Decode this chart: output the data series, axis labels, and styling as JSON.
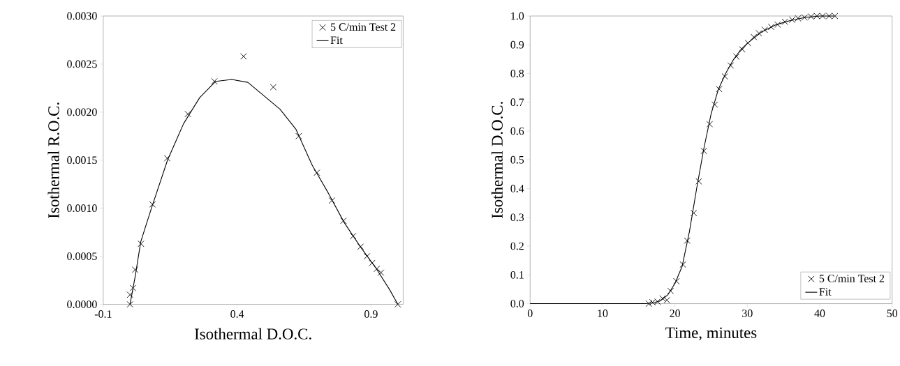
{
  "chart_data": [
    {
      "type": "scatter",
      "xlabel": "Isothermal D.O.C.",
      "ylabel": "Isothermal R.O.C.",
      "xlim": [
        -0.1,
        1.02
      ],
      "ylim": [
        0,
        0.003
      ],
      "xticks": [
        -0.1,
        0.4,
        0.9
      ],
      "yticks": [
        {
          "value": 0,
          "label": "0.0000"
        },
        {
          "value": 0.0005,
          "label": "0.0005"
        },
        {
          "value": 0.001,
          "label": "0.0010"
        },
        {
          "value": 0.0015,
          "label": "0.0015"
        },
        {
          "value": 0.002,
          "label": "0.0020"
        },
        {
          "value": 0.0025,
          "label": "0.0025"
        },
        {
          "value": 0.003,
          "label": "0.0030"
        }
      ],
      "legend": "top right",
      "series": [
        {
          "name": "5 C/min Test 2",
          "marker": "cross",
          "color": "#000000",
          "x": [
            0.0,
            0.0,
            0.011,
            0.019,
            0.041,
            0.084,
            0.139,
            0.216,
            0.315,
            0.424,
            0.535,
            0.63,
            0.698,
            0.754,
            0.797,
            0.833,
            0.861,
            0.885,
            0.904,
            0.922,
            0.937,
            1.0
          ],
          "values": [
            0.0,
            0.0001,
            0.00017,
            0.00036,
            0.00063,
            0.00104,
            0.00152,
            0.00198,
            0.00232,
            0.00258,
            0.00226,
            0.00175,
            0.00137,
            0.00108,
            0.00087,
            0.00071,
            0.0006,
            0.0005,
            0.00043,
            0.00037,
            0.00033,
            0.0
          ]
        },
        {
          "name": "Fit",
          "type": "line",
          "marker": "none",
          "color": "#000000",
          "x": [
            0.0,
            0.02,
            0.04,
            0.08,
            0.14,
            0.2,
            0.26,
            0.32,
            0.38,
            0.44,
            0.5,
            0.56,
            0.62,
            0.68,
            0.74,
            0.8,
            0.86,
            0.92,
            0.97,
            1.0
          ],
          "values": [
            0.0,
            0.0003,
            0.00065,
            0.001,
            0.0015,
            0.00188,
            0.00215,
            0.00232,
            0.00234,
            0.00231,
            0.00217,
            0.00203,
            0.00182,
            0.00145,
            0.00116,
            0.00085,
            0.0006,
            0.00037,
            0.00015,
            0.0
          ]
        }
      ]
    },
    {
      "type": "scatter",
      "xlabel": "Time, minutes",
      "ylabel": "Isothermal D.O.C.",
      "xlim": [
        0,
        50
      ],
      "ylim": [
        0,
        1
      ],
      "xticks": [
        0,
        10,
        20,
        30,
        40,
        50
      ],
      "yticks": [
        {
          "value": 0,
          "label": "0.0"
        },
        {
          "value": 0.1,
          "label": "0.1"
        },
        {
          "value": 0.2,
          "label": "0.2"
        },
        {
          "value": 0.3,
          "label": "0.3"
        },
        {
          "value": 0.4,
          "label": "0.4"
        },
        {
          "value": 0.5,
          "label": "0.5"
        },
        {
          "value": 0.6,
          "label": "0.6"
        },
        {
          "value": 0.7,
          "label": "0.7"
        },
        {
          "value": 0.8,
          "label": "0.8"
        },
        {
          "value": 0.9,
          "label": "0.9"
        },
        {
          "value": 1,
          "label": "1.0"
        }
      ],
      "legend": "bottom right",
      "series": [
        {
          "name": "5 C/min Test 2",
          "marker": "cross",
          "color": "#000000",
          "x": [
            16.4,
            16.9,
            17.6,
            18.3,
            18.9,
            19.4,
            20.2,
            21.1,
            21.7,
            22.6,
            23.3,
            24.0,
            24.8,
            25.5,
            26.1,
            26.9,
            27.7,
            28.5,
            29.3,
            30.1,
            30.9,
            31.6,
            32.4,
            33.3,
            34.2,
            35.2,
            36.2,
            37.0,
            37.9,
            38.8,
            39.6,
            40.4,
            41.3,
            42.1
          ],
          "values": [
            0.0,
            0.005,
            0.007,
            0.018,
            0.012,
            0.044,
            0.078,
            0.136,
            0.219,
            0.315,
            0.425,
            0.531,
            0.624,
            0.692,
            0.746,
            0.79,
            0.828,
            0.859,
            0.884,
            0.906,
            0.927,
            0.94,
            0.952,
            0.962,
            0.97,
            0.98,
            0.987,
            0.992,
            0.995,
            0.998,
            1.0,
            1.0,
            1.0,
            1.0
          ]
        },
        {
          "name": "Fit",
          "type": "line",
          "marker": "none",
          "color": "#000000",
          "x": [
            0,
            16,
            17,
            18,
            19,
            20,
            21,
            22,
            23,
            24,
            25,
            26,
            27,
            28,
            29,
            30,
            32,
            34,
            36,
            38,
            40,
            42
          ],
          "values": [
            0.0,
            0.0,
            0.003,
            0.01,
            0.03,
            0.07,
            0.13,
            0.25,
            0.4,
            0.54,
            0.66,
            0.745,
            0.8,
            0.845,
            0.88,
            0.905,
            0.945,
            0.97,
            0.985,
            0.995,
            1.0,
            1.0
          ]
        }
      ]
    }
  ]
}
